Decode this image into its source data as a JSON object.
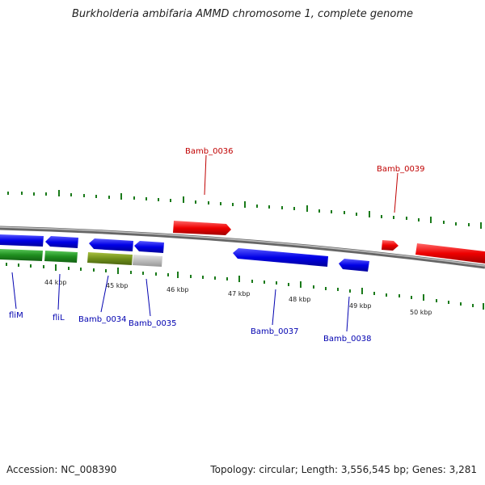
{
  "title": "Burkholderia ambifaria AMMD chromosome 1, complete genome",
  "footer": {
    "accession": "Accession: NC_008390",
    "summary": "Topology: circular; Length: 3,556,545 bp; Genes: 3,281"
  },
  "colors": {
    "forward_gene": "#e00000",
    "reverse_gene": "#0000e0",
    "label_forward": "#c00000",
    "label_reverse": "#0000b0",
    "backbone": "#808080",
    "tick": "#1a7a1a"
  },
  "scale_labels": [
    "44 kbp",
    "45 kbp",
    "46 kbp",
    "47 kbp",
    "48 kbp",
    "49 kbp",
    "50 kbp"
  ],
  "gene_labels": {
    "fliM": "fliM",
    "fliL": "fliL",
    "bamb_0034": "Bamb_0034",
    "bamb_0035": "Bamb_0035",
    "bamb_0036": "Bamb_0036",
    "bamb_0037": "Bamb_0037",
    "bamb_0038": "Bamb_0038",
    "bamb_0039": "Bamb_0039"
  }
}
